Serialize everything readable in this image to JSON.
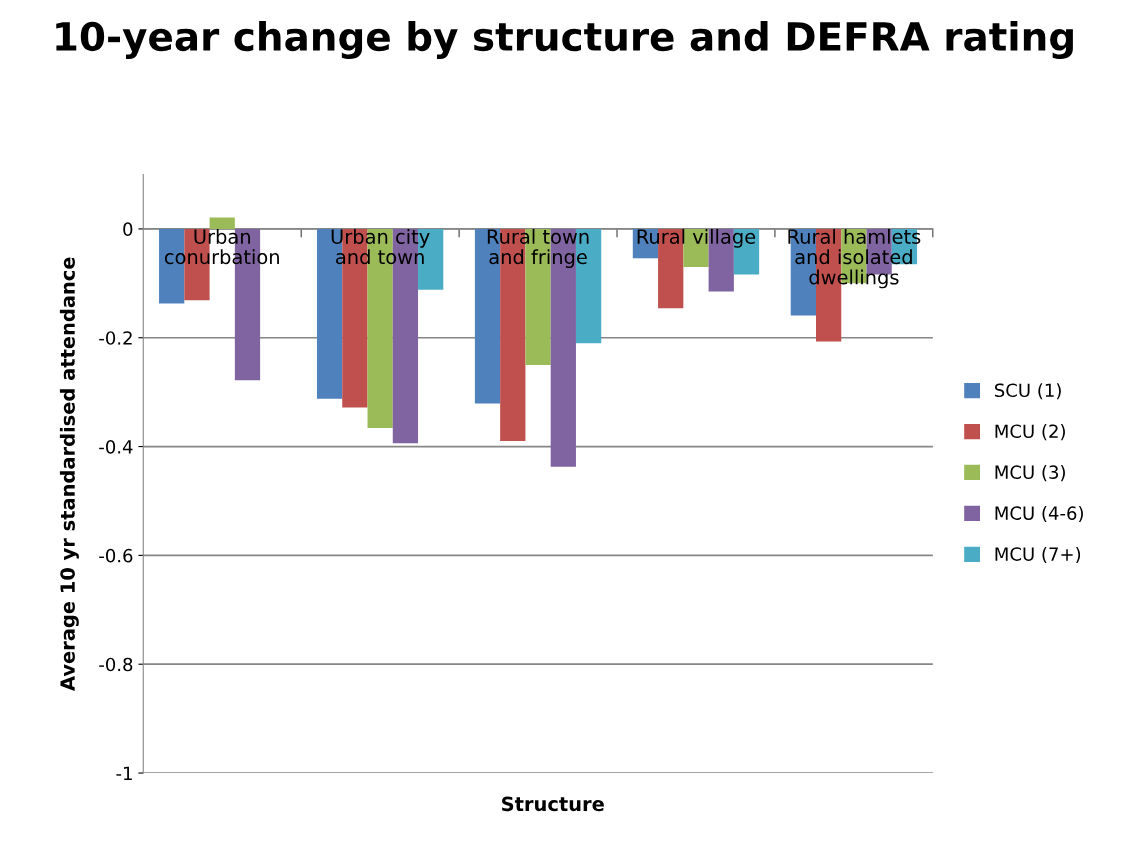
{
  "chart_data": {
    "type": "bar",
    "title": "10-year change by structure and DEFRA rating",
    "xlabel": "Structure",
    "ylabel": "Average 10 yr standardised attendance",
    "categories": [
      "Urban conurbation",
      "Urban city and town",
      "Rural town and fringe",
      "Rural village",
      "Rural hamlets and isolated dwellings"
    ],
    "series": [
      {
        "name": "SCU (1)",
        "color": "#4f81bd",
        "values": [
          -0.137,
          -0.312,
          -0.321,
          -0.054,
          -0.159
        ]
      },
      {
        "name": "MCU (2)",
        "color": "#c0504d",
        "values": [
          -0.131,
          -0.328,
          -0.39,
          -0.146,
          -0.207
        ]
      },
      {
        "name": "MCU (3)",
        "color": "#9bbb59",
        "values": [
          0.021,
          -0.366,
          -0.25,
          -0.07,
          -0.1
        ]
      },
      {
        "name": "MCU (4-6)",
        "color": "#8064a2",
        "values": [
          -0.278,
          -0.394,
          -0.437,
          -0.115,
          -0.084
        ]
      },
      {
        "name": "MCU (7+)",
        "color": "#4bacc6",
        "values": [
          null,
          -0.112,
          -0.21,
          -0.084,
          -0.065
        ]
      }
    ],
    "ylim": [
      -1,
      0.1
    ],
    "yticks": [
      -1,
      -0.8,
      -0.6,
      -0.4,
      -0.2,
      0
    ],
    "grid": "y",
    "legend": "right"
  }
}
